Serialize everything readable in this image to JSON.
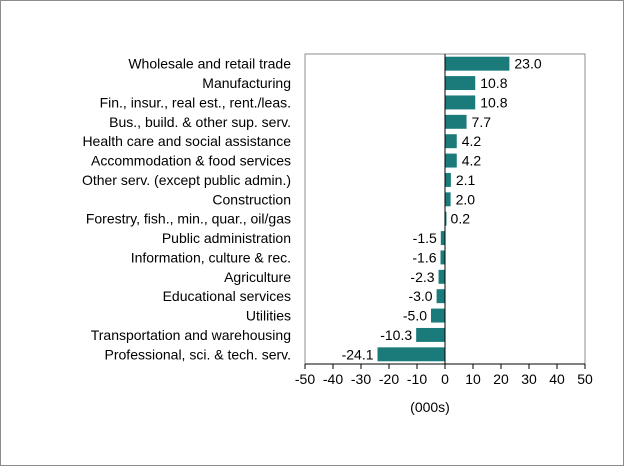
{
  "chart_data": {
    "type": "bar",
    "orientation": "horizontal",
    "title": "",
    "xlabel": "(000s)",
    "ylabel": "",
    "xlim": [
      -50,
      50
    ],
    "xticks": [
      -50,
      -40,
      -30,
      -20,
      -10,
      0,
      10,
      20,
      30,
      40,
      50
    ],
    "grid": false,
    "bar_color": "#1b7b7b",
    "categories": [
      "Wholesale and retail trade",
      "Manufacturing",
      "Fin., insur., real est., rent./leas.",
      "Bus., build. & other sup. serv.",
      "Health care and social assistance",
      "Accommodation & food services",
      "Other serv. (except public admin.)",
      "Construction",
      "Forestry, fish., min., quar., oil/gas",
      "Public administration",
      "Information, culture & rec.",
      "Agriculture",
      "Educational services",
      "Utilities",
      "Transportation and warehousing",
      "Professional, sci. & tech. serv."
    ],
    "values": [
      23.0,
      10.8,
      10.8,
      7.7,
      4.2,
      4.2,
      2.1,
      2.0,
      0.2,
      -1.5,
      -1.6,
      -2.3,
      -3.0,
      -5.0,
      -10.3,
      -24.1
    ],
    "data_labels": [
      "23.0",
      "10.8",
      "10.8",
      "7.7",
      "4.2",
      "4.2",
      "2.1",
      "2.0",
      "0.2",
      "-1.5",
      "-1.6",
      "-2.3",
      "-3.0",
      "-5.0",
      "-10.3",
      "-24.1"
    ]
  }
}
